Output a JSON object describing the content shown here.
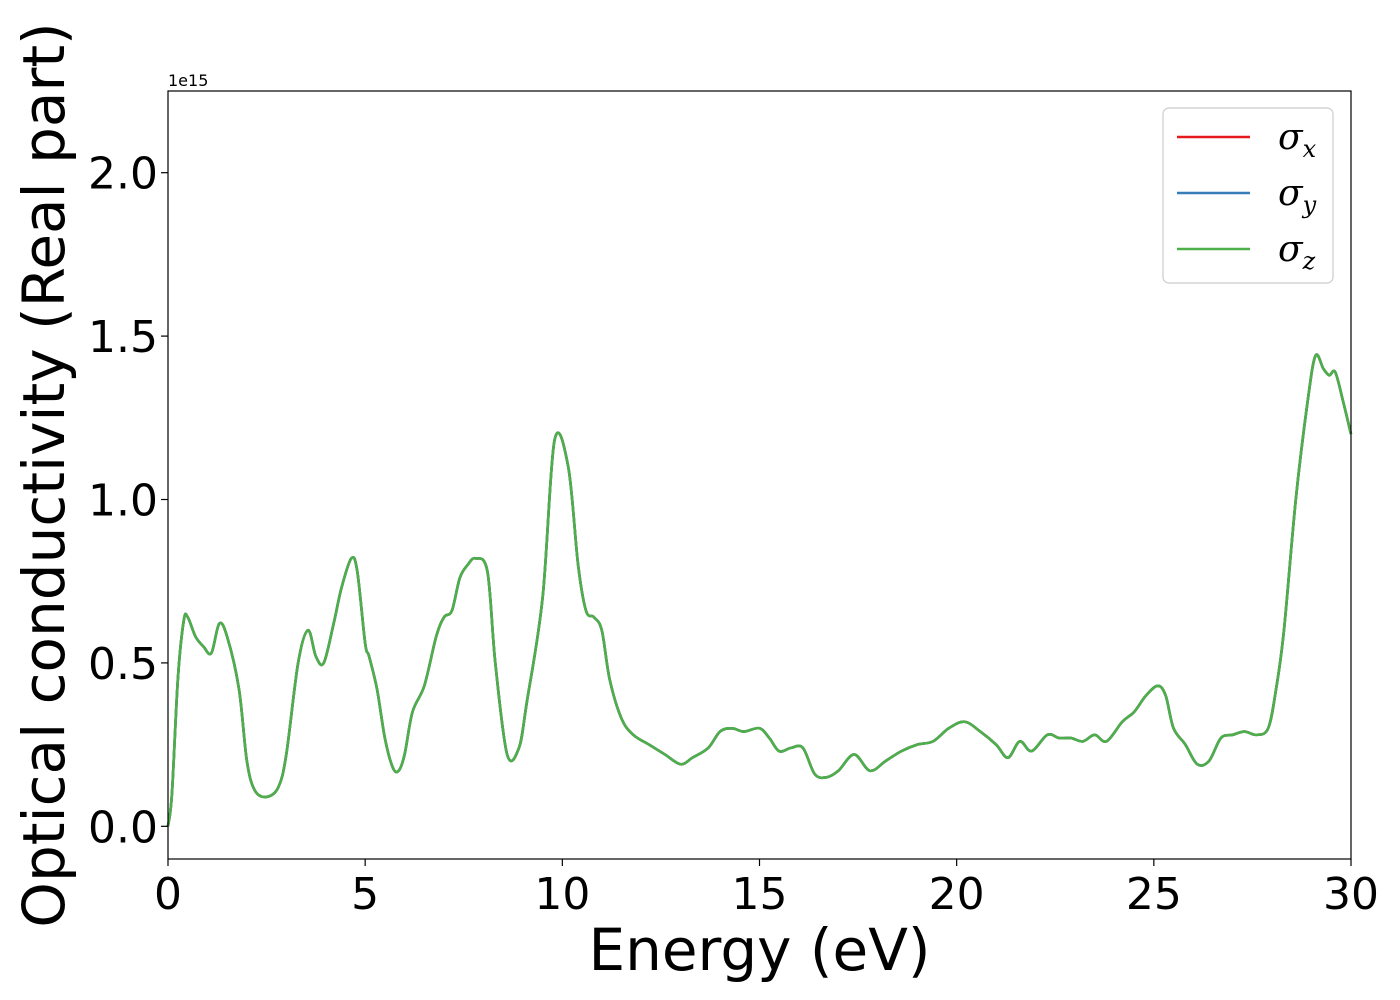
{
  "chart_data": {
    "type": "line",
    "xlabel": "Energy (eV)",
    "ylabel": "Optical conductivity (Real part)",
    "y_offset_text": "1e15",
    "xlim": [
      0,
      30
    ],
    "ylim": [
      -0.1,
      2.25
    ],
    "y_scale": 1000000000000000.0,
    "x_ticks": [
      0,
      5,
      10,
      15,
      20,
      25,
      30
    ],
    "x_tick_labels": [
      "0",
      "5",
      "10",
      "15",
      "20",
      "25",
      "30"
    ],
    "y_ticks": [
      0.0,
      0.5,
      1.0,
      1.5,
      2.0
    ],
    "y_tick_labels": [
      "0.0",
      "0.5",
      "1.0",
      "1.5",
      "2.0"
    ],
    "grid": false,
    "legend_position": "top-right",
    "x": [
      0,
      0.1,
      0.25,
      0.4,
      0.5,
      0.7,
      0.9,
      1.1,
      1.3,
      1.5,
      1.8,
      2.0,
      2.2,
      2.5,
      2.8,
      3.0,
      3.3,
      3.55,
      3.75,
      3.95,
      4.2,
      4.4,
      4.65,
      4.8,
      5.0,
      5.1,
      5.3,
      5.5,
      5.7,
      5.85,
      6.0,
      6.2,
      6.5,
      6.8,
      7.0,
      7.2,
      7.4,
      7.6,
      7.8,
      8.1,
      8.3,
      8.6,
      8.9,
      9.1,
      9.5,
      9.8,
      10.15,
      10.4,
      10.6,
      10.8,
      11.0,
      11.2,
      11.5,
      11.8,
      12.2,
      12.6,
      13.0,
      13.3,
      13.7,
      14.0,
      14.3,
      14.6,
      15.0,
      15.25,
      15.5,
      15.8,
      16.1,
      16.4,
      16.7,
      17.0,
      17.4,
      17.8,
      18.2,
      18.6,
      19.0,
      19.4,
      19.8,
      20.2,
      20.6,
      21.0,
      21.3,
      21.6,
      21.9,
      22.3,
      22.6,
      22.9,
      23.2,
      23.5,
      23.8,
      24.2,
      24.5,
      24.8,
      25.1,
      25.3,
      25.5,
      25.8,
      26.1,
      26.4,
      26.7,
      27.0,
      27.3,
      27.6,
      27.9,
      28.1,
      28.3,
      28.6,
      28.9,
      29.1,
      29.3,
      29.45,
      29.6,
      29.8,
      30.0
    ],
    "series": [
      {
        "name": "σx",
        "color": "#e41a1c",
        "values": [
          0.0,
          0.1,
          0.45,
          0.63,
          0.64,
          0.58,
          0.55,
          0.53,
          0.62,
          0.58,
          0.42,
          0.2,
          0.11,
          0.09,
          0.12,
          0.22,
          0.5,
          0.6,
          0.52,
          0.5,
          0.62,
          0.73,
          0.82,
          0.78,
          0.56,
          0.52,
          0.42,
          0.27,
          0.18,
          0.17,
          0.22,
          0.35,
          0.43,
          0.58,
          0.64,
          0.66,
          0.76,
          0.8,
          0.82,
          0.78,
          0.5,
          0.22,
          0.24,
          0.38,
          0.7,
          1.18,
          1.1,
          0.8,
          0.66,
          0.64,
          0.6,
          0.45,
          0.33,
          0.28,
          0.25,
          0.22,
          0.19,
          0.21,
          0.24,
          0.29,
          0.3,
          0.29,
          0.3,
          0.27,
          0.23,
          0.24,
          0.24,
          0.16,
          0.15,
          0.17,
          0.22,
          0.17,
          0.2,
          0.23,
          0.25,
          0.26,
          0.3,
          0.32,
          0.29,
          0.25,
          0.21,
          0.26,
          0.23,
          0.28,
          0.27,
          0.27,
          0.26,
          0.28,
          0.26,
          0.32,
          0.35,
          0.4,
          0.43,
          0.4,
          0.3,
          0.25,
          0.19,
          0.2,
          0.27,
          0.28,
          0.29,
          0.28,
          0.3,
          0.42,
          0.6,
          1.0,
          1.3,
          1.44,
          1.4,
          1.38,
          1.39,
          1.3,
          1.2
        ]
      },
      {
        "name": "σy",
        "color": "#377eb8",
        "values": [
          0.0,
          0.1,
          0.45,
          0.63,
          0.64,
          0.58,
          0.55,
          0.53,
          0.62,
          0.58,
          0.42,
          0.2,
          0.11,
          0.09,
          0.12,
          0.22,
          0.5,
          0.6,
          0.52,
          0.5,
          0.62,
          0.73,
          0.82,
          0.78,
          0.56,
          0.52,
          0.42,
          0.27,
          0.18,
          0.17,
          0.22,
          0.35,
          0.43,
          0.58,
          0.64,
          0.66,
          0.76,
          0.8,
          0.82,
          0.78,
          0.5,
          0.22,
          0.24,
          0.38,
          0.7,
          1.18,
          1.1,
          0.8,
          0.66,
          0.64,
          0.6,
          0.45,
          0.33,
          0.28,
          0.25,
          0.22,
          0.19,
          0.21,
          0.24,
          0.29,
          0.3,
          0.29,
          0.3,
          0.27,
          0.23,
          0.24,
          0.24,
          0.16,
          0.15,
          0.17,
          0.22,
          0.17,
          0.2,
          0.23,
          0.25,
          0.26,
          0.3,
          0.32,
          0.29,
          0.25,
          0.21,
          0.26,
          0.23,
          0.28,
          0.27,
          0.27,
          0.26,
          0.28,
          0.26,
          0.32,
          0.35,
          0.4,
          0.43,
          0.4,
          0.3,
          0.25,
          0.19,
          0.2,
          0.27,
          0.28,
          0.29,
          0.28,
          0.3,
          0.42,
          0.6,
          1.0,
          1.3,
          1.44,
          1.4,
          1.38,
          1.39,
          1.3,
          1.2
        ]
      },
      {
        "name": "σz",
        "color": "#4daf4a",
        "values": [
          0.0,
          0.1,
          0.45,
          0.63,
          0.64,
          0.58,
          0.55,
          0.53,
          0.62,
          0.58,
          0.42,
          0.2,
          0.11,
          0.09,
          0.12,
          0.22,
          0.5,
          0.6,
          0.52,
          0.5,
          0.62,
          0.73,
          0.82,
          0.78,
          0.56,
          0.52,
          0.42,
          0.27,
          0.18,
          0.17,
          0.22,
          0.35,
          0.43,
          0.58,
          0.64,
          0.66,
          0.76,
          0.8,
          0.82,
          0.78,
          0.5,
          0.22,
          0.24,
          0.38,
          0.7,
          1.18,
          1.1,
          0.8,
          0.66,
          0.64,
          0.6,
          0.45,
          0.33,
          0.28,
          0.25,
          0.22,
          0.19,
          0.21,
          0.24,
          0.29,
          0.3,
          0.29,
          0.3,
          0.27,
          0.23,
          0.24,
          0.24,
          0.16,
          0.15,
          0.17,
          0.22,
          0.17,
          0.2,
          0.23,
          0.25,
          0.26,
          0.3,
          0.32,
          0.29,
          0.25,
          0.21,
          0.26,
          0.23,
          0.28,
          0.27,
          0.27,
          0.26,
          0.28,
          0.26,
          0.32,
          0.35,
          0.4,
          0.43,
          0.4,
          0.3,
          0.25,
          0.19,
          0.2,
          0.27,
          0.28,
          0.29,
          0.28,
          0.3,
          0.42,
          0.6,
          1.0,
          1.3,
          1.44,
          1.4,
          1.38,
          1.39,
          1.3,
          1.2
        ]
      }
    ],
    "legend": [
      {
        "symbol": "σ",
        "subscript": "x"
      },
      {
        "symbol": "σ",
        "subscript": "y"
      },
      {
        "symbol": "σ",
        "subscript": "z"
      }
    ]
  }
}
